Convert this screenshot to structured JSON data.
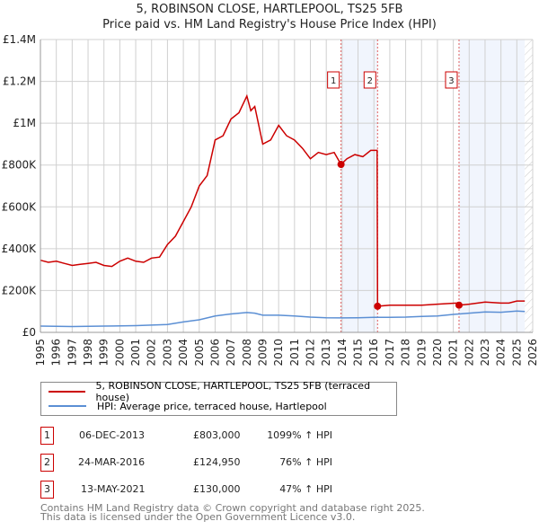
{
  "chart_data": {
    "type": "line",
    "title": "5, ROBINSON CLOSE, HARTLEPOOL, TS25 5FB",
    "subtitle": "Price paid vs. HM Land Registry's House Price Index (HPI)",
    "xlim": [
      1995,
      2026
    ],
    "ylim": [
      0,
      1400000
    ],
    "x_ticks": [
      "1995",
      "1996",
      "1997",
      "1998",
      "1999",
      "2000",
      "2001",
      "2002",
      "2003",
      "2004",
      "2005",
      "2006",
      "2007",
      "2008",
      "2009",
      "2010",
      "2011",
      "2012",
      "2013",
      "2014",
      "2015",
      "2016",
      "2017",
      "2018",
      "2019",
      "2020",
      "2021",
      "2022",
      "2023",
      "2024",
      "2025",
      "2026"
    ],
    "y_ticks": [
      {
        "v": 0,
        "label": "£0"
      },
      {
        "v": 200000,
        "label": "£200K"
      },
      {
        "v": 400000,
        "label": "£400K"
      },
      {
        "v": 600000,
        "label": "£600K"
      },
      {
        "v": 800000,
        "label": "£800K"
      },
      {
        "v": 1000000,
        "label": "£1M"
      },
      {
        "v": 1200000,
        "label": "£1.2M"
      },
      {
        "v": 1400000,
        "label": "£1.4M"
      }
    ],
    "grid": true,
    "series": [
      {
        "name": "5, ROBINSON CLOSE, HARTLEPOOL, TS25 5FB (terraced house)",
        "color": "#cc0000",
        "x": [
          1995,
          1995.5,
          1996,
          1996.5,
          1997,
          1997.5,
          1998,
          1998.5,
          1999,
          1999.5,
          2000,
          2000.5,
          2001,
          2001.5,
          2002,
          2002.5,
          2003,
          2003.5,
          2004,
          2004.5,
          2005,
          2005.5,
          2006,
          2006.5,
          2007,
          2007.5,
          2008,
          2008.25,
          2008.5,
          2009,
          2009.5,
          2010,
          2010.5,
          2011,
          2011.5,
          2012,
          2012.5,
          2013,
          2013.5,
          2013.93,
          2014.3,
          2014.8,
          2015.3,
          2015.8,
          2016.2,
          2016.23,
          2017,
          2018,
          2019,
          2020,
          2021.2,
          2021.36,
          2022,
          2023,
          2024,
          2024.5,
          2025,
          2025.5
        ],
        "y": [
          345,
          335,
          340,
          330,
          320,
          325,
          330,
          335,
          320,
          315,
          340,
          355,
          340,
          335,
          355,
          360,
          420,
          460,
          530,
          600,
          700,
          750,
          920,
          940,
          1020,
          1050,
          1130,
          1060,
          1080,
          900,
          920,
          990,
          940,
          920,
          880,
          830,
          860,
          850,
          860,
          803,
          830,
          850,
          840,
          870,
          870,
          124.95,
          130,
          130,
          130,
          135,
          140,
          130,
          135,
          145,
          140,
          140,
          150,
          150
        ],
        "y_unit": "thousands GBP"
      },
      {
        "name": "HPI: Average price, terraced house, Hartlepool",
        "color": "#5b8fd4",
        "x": [
          1995,
          1997,
          1999,
          2001,
          2002,
          2003,
          2004,
          2005,
          2006,
          2007,
          2008,
          2008.5,
          2009,
          2010,
          2011,
          2012,
          2013,
          2014,
          2015,
          2016,
          2017,
          2018,
          2019,
          2020,
          2021,
          2022,
          2023,
          2024,
          2025,
          2025.5
        ],
        "y": [
          30,
          28,
          30,
          32,
          35,
          38,
          50,
          60,
          78,
          88,
          95,
          92,
          82,
          82,
          78,
          73,
          70,
          69,
          70,
          72,
          72,
          73,
          76,
          78,
          86,
          92,
          98,
          96,
          102,
          100
        ],
        "y_unit": "thousands GBP"
      }
    ],
    "sales": [
      {
        "n": "1",
        "x": 2013.93,
        "y": 803,
        "date": "06-DEC-2013",
        "price": "£803,000",
        "hpi": "1099% ↑ HPI"
      },
      {
        "n": "2",
        "x": 2016.23,
        "y": 124.95,
        "date": "24-MAR-2016",
        "price": "£124,950",
        "hpi": "76% ↑ HPI"
      },
      {
        "n": "3",
        "x": 2021.36,
        "y": 130,
        "date": "13-MAY-2021",
        "price": "£130,000",
        "hpi": "47% ↑ HPI"
      }
    ],
    "shaded": [
      [
        2013.93,
        2016.23
      ],
      [
        2021.36,
        2025.5
      ]
    ],
    "forecast_from": 2025.5,
    "legend": "bottom"
  },
  "footer": {
    "line1": "Contains HM Land Registry data © Crown copyright and database right 2025.",
    "line2": "This data is licensed under the Open Government Licence v3.0."
  }
}
